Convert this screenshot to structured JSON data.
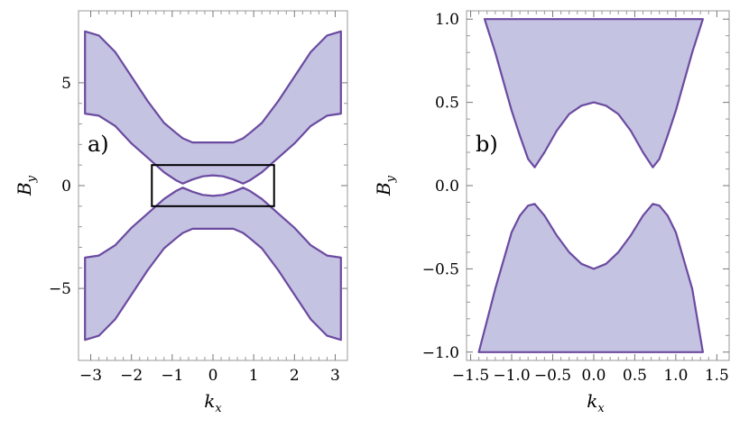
{
  "chart_data": [
    {
      "type": "area",
      "panel": "a)",
      "xlabel": "k",
      "xlabel_sub": "x",
      "ylabel": "B",
      "ylabel_sub": "y",
      "xlim": [
        -3.3,
        3.3
      ],
      "ylim": [
        -8.5,
        8.5
      ],
      "xticks": [
        -3,
        -2,
        -1,
        0,
        1,
        2,
        3
      ],
      "xtick_labels": [
        "−3",
        "−2",
        "−1",
        "0",
        "1",
        "2",
        "3"
      ],
      "yticks": [
        -5,
        0,
        5
      ],
      "ytick_labels": [
        "−5",
        "0",
        "5"
      ],
      "fill_color": "#c4c3e2",
      "line_color": "#6b4aa0",
      "series": [
        {
          "x": [
            -3.14,
            -2.8,
            -2.4,
            -2.0,
            -1.6,
            -1.2,
            -0.9,
            -0.74,
            -0.5,
            -0.25,
            0,
            0.25,
            0.5,
            0.74,
            0.9,
            1.2,
            1.6,
            2.0,
            2.4,
            2.8,
            3.14
          ],
          "upper": [
            7.5,
            7.3,
            6.5,
            5.3,
            4.1,
            3.05,
            2.55,
            2.3,
            2.1,
            2.1,
            2.1,
            2.1,
            2.1,
            2.3,
            2.55,
            3.05,
            4.1,
            5.3,
            6.5,
            7.3,
            7.5
          ],
          "lower": [
            3.5,
            3.4,
            2.9,
            2.05,
            1.35,
            0.65,
            0.25,
            0.1,
            0.3,
            0.45,
            0.5,
            0.45,
            0.3,
            0.1,
            0.25,
            0.65,
            1.35,
            2.05,
            2.9,
            3.4,
            3.5
          ]
        }
      ],
      "highlight_box": {
        "x": [
          -1.5,
          1.5
        ],
        "y": [
          -1.0,
          1.0
        ]
      }
    },
    {
      "type": "area",
      "panel": "b)",
      "xlabel": "k",
      "xlabel_sub": "x",
      "ylabel": "B",
      "ylabel_sub": "y",
      "xlim": [
        -1.55,
        1.65
      ],
      "ylim": [
        -1.05,
        1.05
      ],
      "xticks": [
        -1.5,
        -1.0,
        -0.5,
        0.0,
        0.5,
        1.0,
        1.5
      ],
      "xtick_labels": [
        "−1.5",
        "−1.0",
        "−0.5",
        "0.0",
        "0.5",
        "1.0",
        "1.5"
      ],
      "yticks": [
        -1.0,
        -0.5,
        0.0,
        0.5,
        1.0
      ],
      "ytick_labels": [
        "−1.0",
        "−0.5",
        "0.0",
        "0.5",
        "1.0"
      ],
      "fill_color": "#c4c3e2",
      "line_color": "#6b4aa0",
      "upper_region": {
        "x": [
          -1.33,
          -1.2,
          -1.0,
          -0.9,
          -0.8,
          -0.72,
          -0.6,
          -0.45,
          -0.3,
          -0.15,
          0,
          0.15,
          0.3,
          0.45,
          0.6,
          0.72,
          0.8,
          0.9,
          1.0,
          1.2,
          1.33
        ],
        "lower": [
          1.0,
          0.8,
          0.45,
          0.3,
          0.16,
          0.11,
          0.2,
          0.33,
          0.43,
          0.48,
          0.5,
          0.48,
          0.43,
          0.33,
          0.2,
          0.11,
          0.16,
          0.3,
          0.45,
          0.8,
          1.0
        ],
        "top": 1.0
      },
      "lower_region": {
        "x": [
          -1.4,
          -1.2,
          -1.0,
          -0.9,
          -0.8,
          -0.72,
          -0.6,
          -0.45,
          -0.3,
          -0.15,
          0,
          0.15,
          0.3,
          0.45,
          0.6,
          0.72,
          0.8,
          0.9,
          1.0,
          1.2,
          1.33
        ],
        "upper": [
          -1.0,
          -0.62,
          -0.28,
          -0.18,
          -0.12,
          -0.11,
          -0.18,
          -0.3,
          -0.4,
          -0.47,
          -0.5,
          -0.47,
          -0.4,
          -0.3,
          -0.18,
          -0.11,
          -0.12,
          -0.18,
          -0.28,
          -0.62,
          -1.0
        ],
        "bottom": -1.0
      }
    }
  ]
}
